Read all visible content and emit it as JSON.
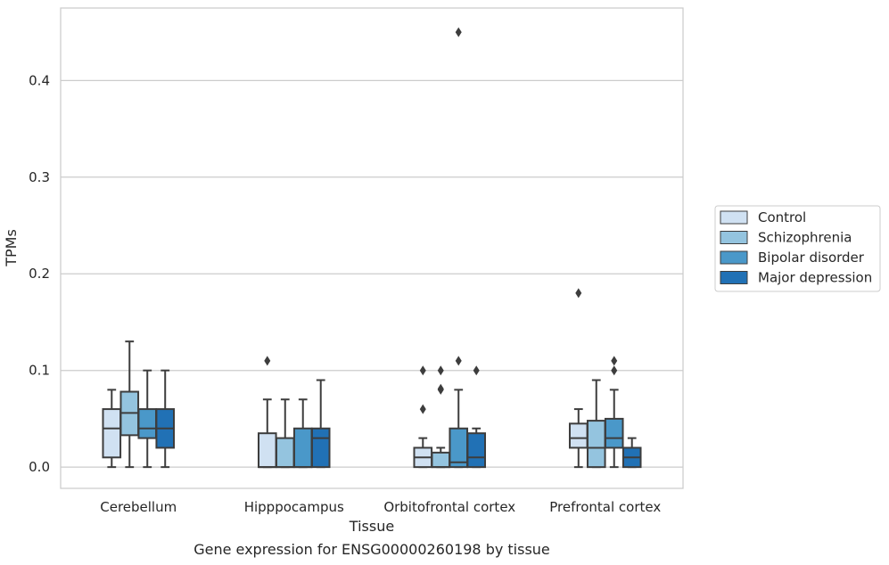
{
  "chart_data": {
    "type": "boxplot",
    "xlabel": "Tissue",
    "ylabel": "TPMs",
    "caption": "Gene expression for ENSG00000260198 by tissue",
    "ylim": [
      -0.022,
      0.475
    ],
    "yticks": [
      0.0,
      0.1,
      0.2,
      0.3,
      0.4
    ],
    "ytick_labels": [
      "0.0",
      "0.1",
      "0.2",
      "0.3",
      "0.4"
    ],
    "grid": "horizontal",
    "legend_position": "right",
    "categories": [
      "Cerebellum",
      "Hipppocampus",
      "Orbitofrontal cortex",
      "Prefrontal cortex"
    ],
    "series": [
      {
        "name": "Control",
        "color": "#d0e1f2",
        "boxes": [
          {
            "q1": 0.01,
            "median": 0.04,
            "q3": 0.06,
            "whislo": 0.0,
            "whishi": 0.08,
            "fliers": []
          },
          {
            "q1": 0.0,
            "median": 0.0,
            "q3": 0.035,
            "whislo": 0.0,
            "whishi": 0.07,
            "fliers": [
              0.11
            ]
          },
          {
            "q1": 0.0,
            "median": 0.01,
            "q3": 0.02,
            "whislo": 0.0,
            "whishi": 0.03,
            "fliers": [
              0.06,
              0.1
            ]
          },
          {
            "q1": 0.02,
            "median": 0.03,
            "q3": 0.045,
            "whislo": 0.0,
            "whishi": 0.06,
            "fliers": [
              0.18
            ]
          }
        ]
      },
      {
        "name": "Schizophrenia",
        "color": "#94c4df",
        "boxes": [
          {
            "q1": 0.033,
            "median": 0.056,
            "q3": 0.078,
            "whislo": 0.0,
            "whishi": 0.13,
            "fliers": []
          },
          {
            "q1": 0.0,
            "median": 0.0,
            "q3": 0.03,
            "whislo": 0.0,
            "whishi": 0.07,
            "fliers": []
          },
          {
            "q1": 0.0,
            "median": 0.0,
            "q3": 0.015,
            "whislo": 0.0,
            "whishi": 0.02,
            "fliers": [
              0.08,
              0.081,
              0.1
            ]
          },
          {
            "q1": 0.0,
            "median": 0.02,
            "q3": 0.048,
            "whislo": 0.0,
            "whishi": 0.09,
            "fliers": []
          }
        ]
      },
      {
        "name": "Bipolar disorder",
        "color": "#4a98c9",
        "boxes": [
          {
            "q1": 0.03,
            "median": 0.04,
            "q3": 0.06,
            "whislo": 0.0,
            "whishi": 0.1,
            "fliers": []
          },
          {
            "q1": 0.0,
            "median": 0.0,
            "q3": 0.04,
            "whislo": 0.0,
            "whishi": 0.07,
            "fliers": []
          },
          {
            "q1": 0.0,
            "median": 0.005,
            "q3": 0.04,
            "whislo": 0.0,
            "whishi": 0.08,
            "fliers": [
              0.11,
              0.45
            ]
          },
          {
            "q1": 0.02,
            "median": 0.03,
            "q3": 0.05,
            "whislo": 0.0,
            "whishi": 0.08,
            "fliers": [
              0.1,
              0.11
            ]
          }
        ]
      },
      {
        "name": "Major depression",
        "color": "#2171b5",
        "boxes": [
          {
            "q1": 0.02,
            "median": 0.04,
            "q3": 0.06,
            "whislo": 0.0,
            "whishi": 0.1,
            "fliers": []
          },
          {
            "q1": 0.0,
            "median": 0.03,
            "q3": 0.04,
            "whislo": 0.0,
            "whishi": 0.09,
            "fliers": []
          },
          {
            "q1": 0.0,
            "median": 0.01,
            "q3": 0.035,
            "whislo": 0.0,
            "whishi": 0.04,
            "fliers": [
              0.1
            ]
          },
          {
            "q1": 0.0,
            "median": 0.01,
            "q3": 0.02,
            "whislo": 0.0,
            "whishi": 0.03,
            "fliers": []
          }
        ]
      }
    ]
  }
}
